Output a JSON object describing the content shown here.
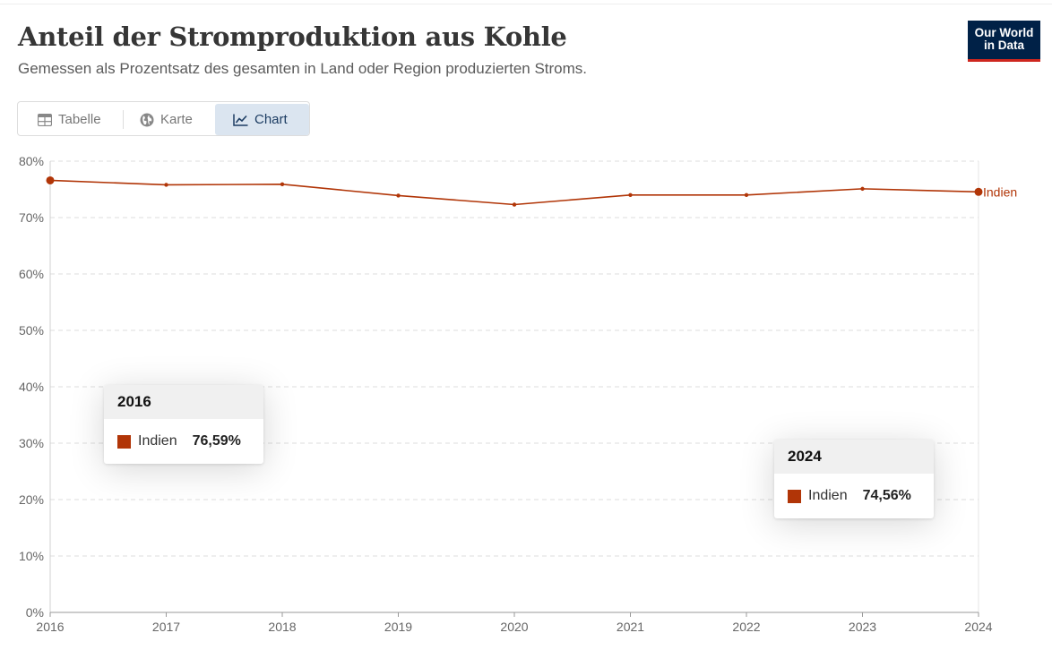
{
  "header": {
    "title": "Anteil der Stromproduktion aus Kohle",
    "subtitle": "Gemessen als Prozentsatz des gesamten in Land oder Region produzierten Stroms.",
    "logo_line1": "Our World",
    "logo_line2": "in Data"
  },
  "tabs": [
    {
      "label": "Tabelle",
      "icon": "table-icon"
    },
    {
      "label": "Karte",
      "icon": "globe-icon"
    },
    {
      "label": "Chart",
      "icon": "line-chart-icon",
      "active": true
    }
  ],
  "colors": {
    "series": "#b13507",
    "grid": "#dddddd",
    "axis": "#999999"
  },
  "tooltips": [
    {
      "year": "2016",
      "country": "Indien",
      "value": "76,59%"
    },
    {
      "year": "2024",
      "country": "Indien",
      "value": "74,56%"
    }
  ],
  "chart_data": {
    "type": "line",
    "title": "Anteil der Stromproduktion aus Kohle",
    "subtitle": "Gemessen als Prozentsatz des gesamten in Land oder Region produzierten Stroms.",
    "x": [
      2016,
      2017,
      2018,
      2019,
      2020,
      2021,
      2022,
      2023,
      2024
    ],
    "x_tick_labels": [
      "2016",
      "2017",
      "2018",
      "2019",
      "2020",
      "2021",
      "2022",
      "2023",
      "2024"
    ],
    "series": [
      {
        "name": "Indien",
        "values": [
          76.59,
          75.8,
          75.9,
          73.9,
          72.3,
          74.0,
          74.0,
          75.1,
          74.56
        ]
      }
    ],
    "y_ticks": [
      0,
      10,
      20,
      30,
      40,
      50,
      60,
      70,
      80
    ],
    "y_tick_labels": [
      "0%",
      "10%",
      "20%",
      "30%",
      "40%",
      "50%",
      "60%",
      "70%",
      "80%"
    ],
    "ylim": [
      0,
      80
    ],
    "grid": true,
    "legend": "line-end label"
  }
}
